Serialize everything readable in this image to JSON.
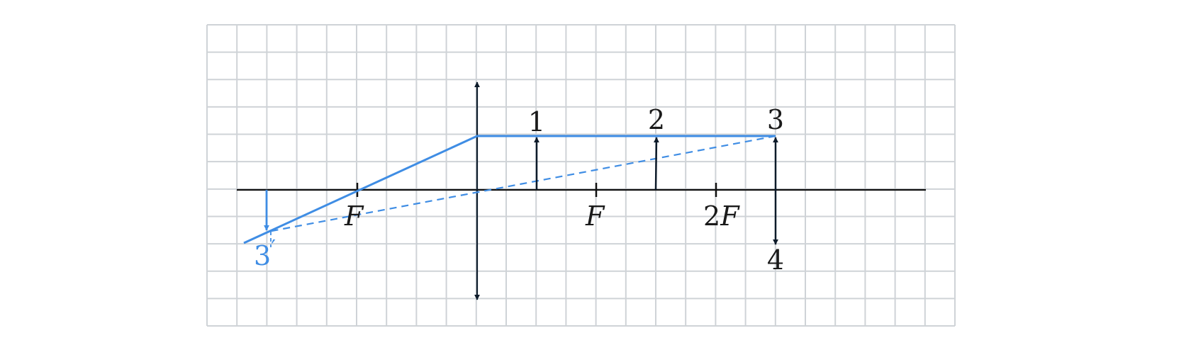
{
  "labels": {
    "focus_left": "F",
    "focus_right": "F",
    "two_f_coeff": "2",
    "two_f_letter": "F",
    "object_1": "1",
    "object_2": "2",
    "object_3": "3",
    "object_4": "4",
    "image_3_num": "3",
    "image_3_prime": "′"
  },
  "colors": {
    "grid": "#cfd3d7",
    "axis": "#111111",
    "arrow": "#0d1b2a",
    "ray": "#3f8de4"
  }
}
